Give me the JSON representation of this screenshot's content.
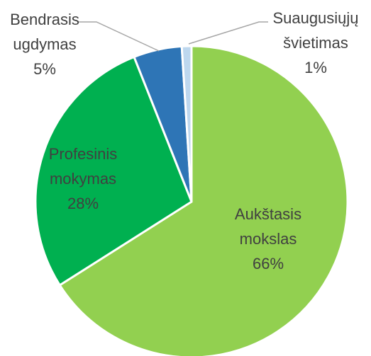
{
  "chart_data": {
    "type": "pie",
    "categories": [
      "Aukštasis mokslas",
      "Profesinis mokymas",
      "Bendrasis ugdymas",
      "Suaugusiųjų švietimas"
    ],
    "values": [
      66,
      28,
      5,
      1
    ],
    "value_labels": [
      "66%",
      "28%",
      "5%",
      "1%"
    ],
    "colors": [
      "#92d050",
      "#00b050",
      "#2e75b6",
      "#bdd7ee"
    ]
  }
}
